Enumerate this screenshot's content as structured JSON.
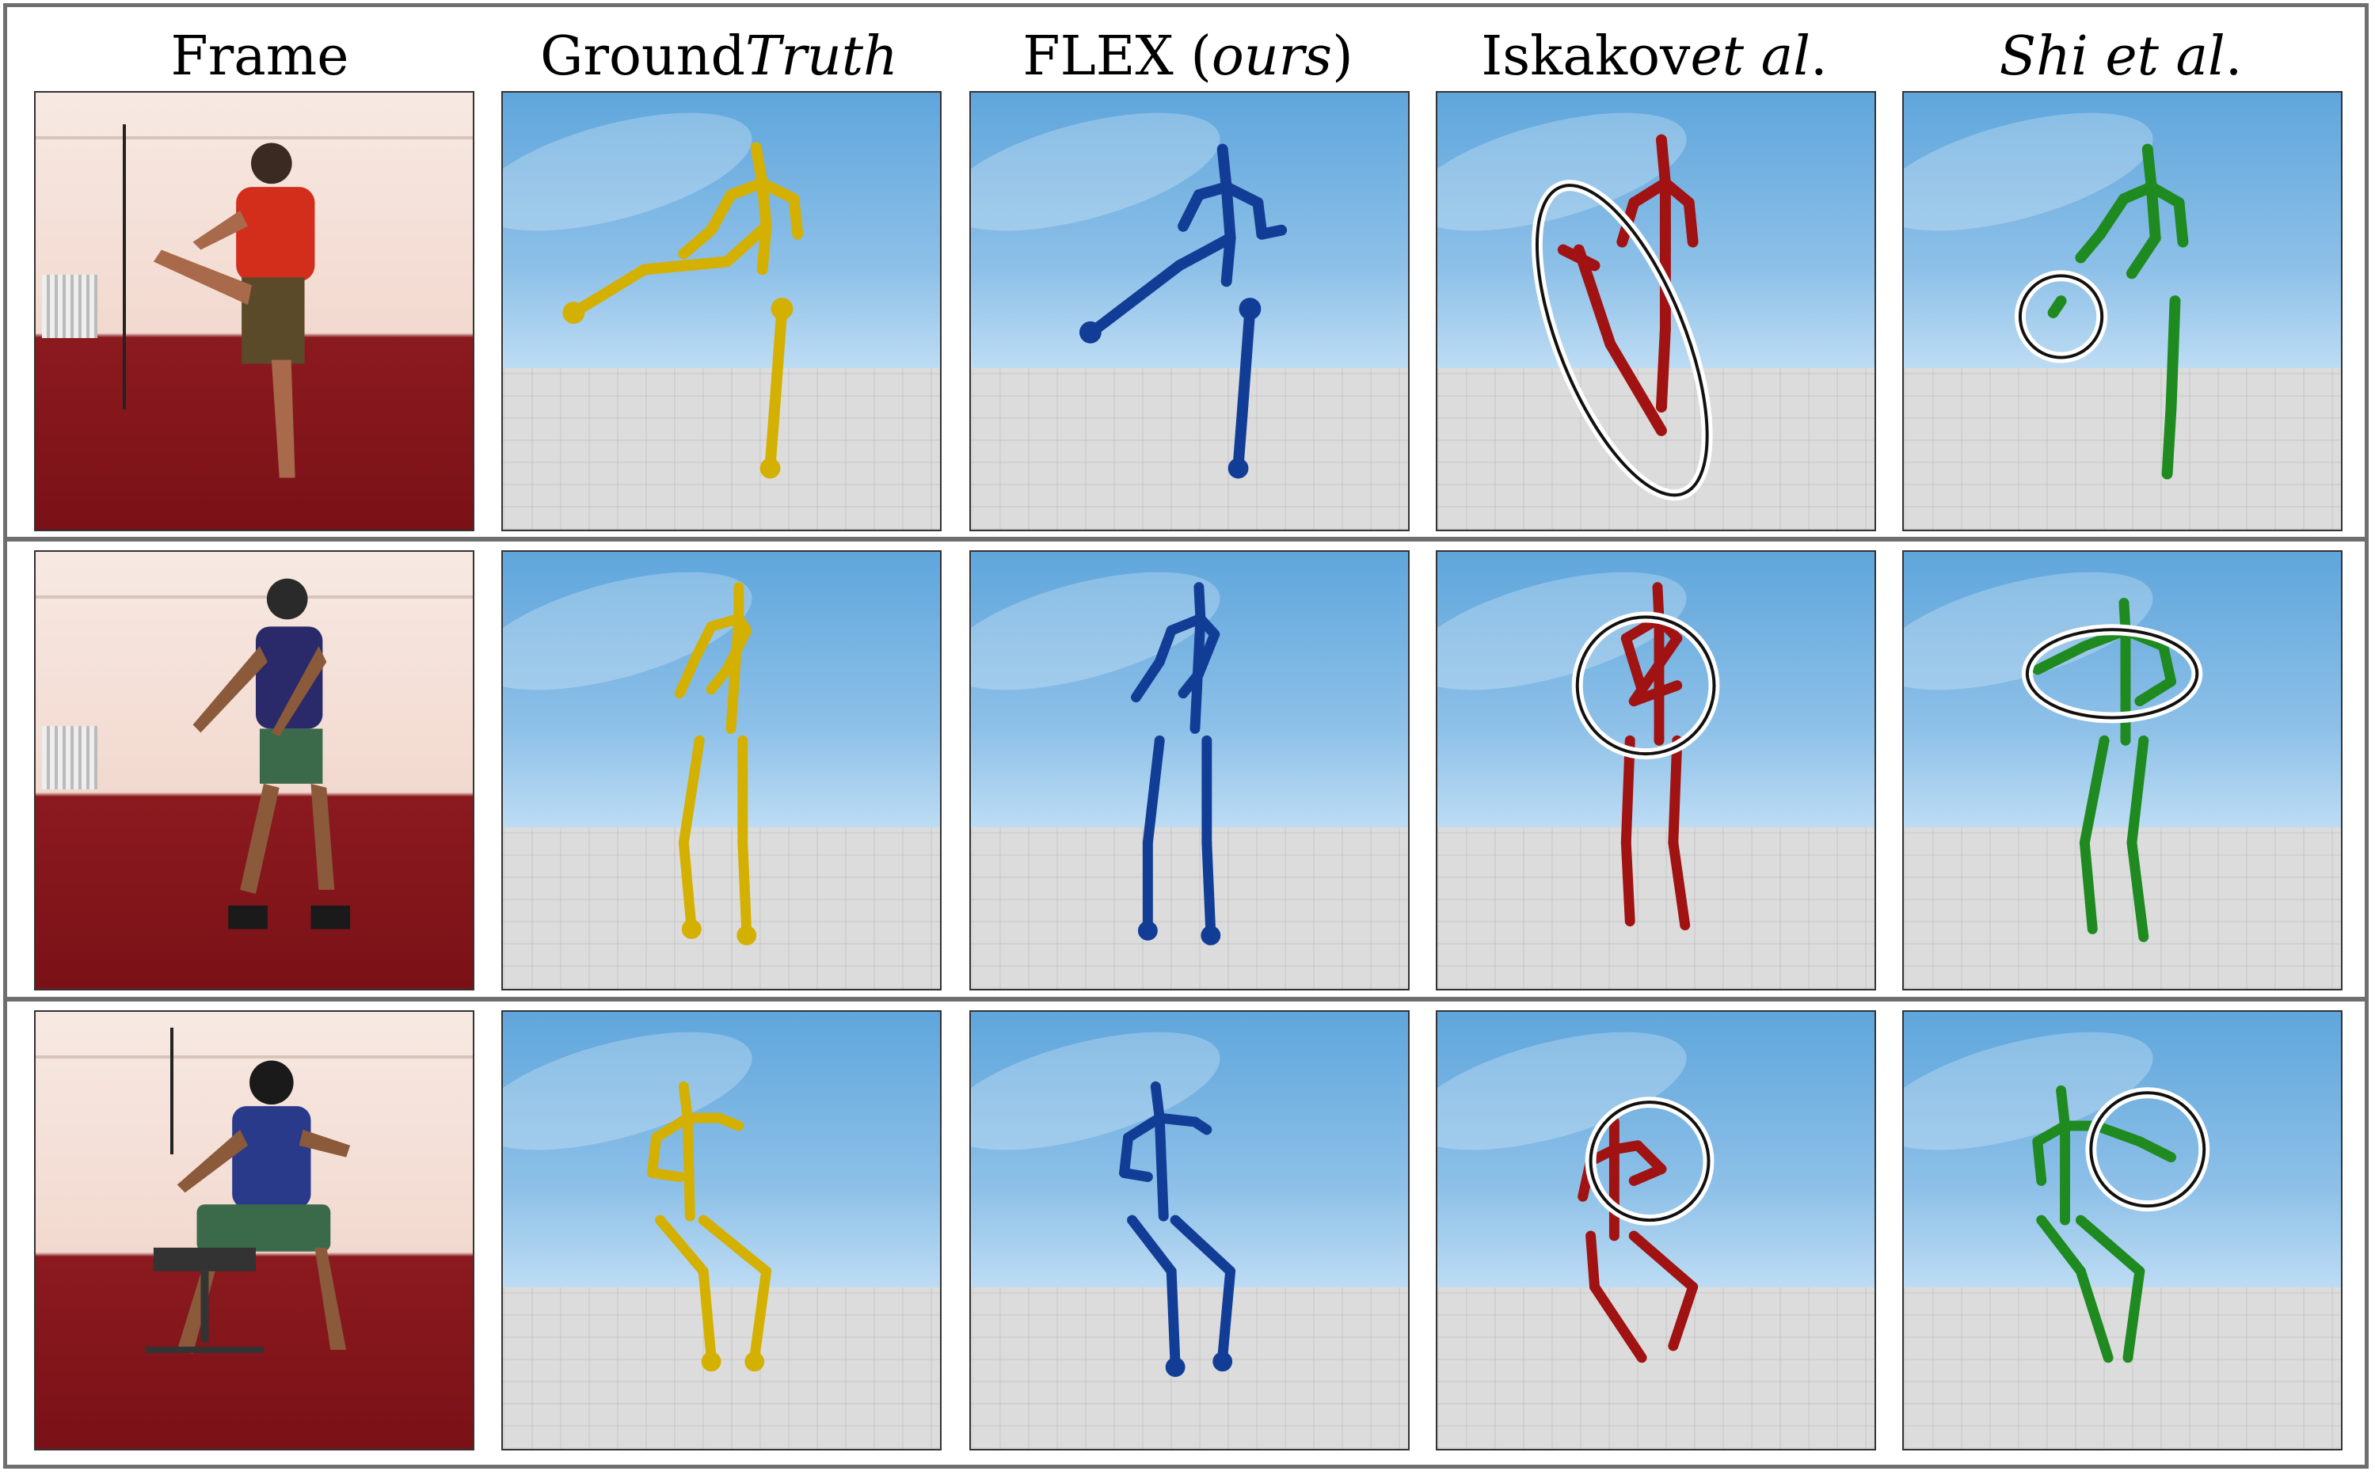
{
  "headers": {
    "frame": "Frame",
    "gt_plain": "Ground ",
    "gt_italic": "Truth",
    "flex_plain": "FLEX (",
    "flex_italic": "ours",
    "flex_close": ")",
    "iskakov_plain": "Iskakov ",
    "iskakov_italic": "et al",
    "iskakov_dot": ".",
    "shi_italic": "Shi et al",
    "shi_dot": "."
  },
  "colors": {
    "ground_truth": "#d4b000",
    "flex": "#123d96",
    "iskakov": "#a11212",
    "shi": "#1f8a1f"
  }
}
